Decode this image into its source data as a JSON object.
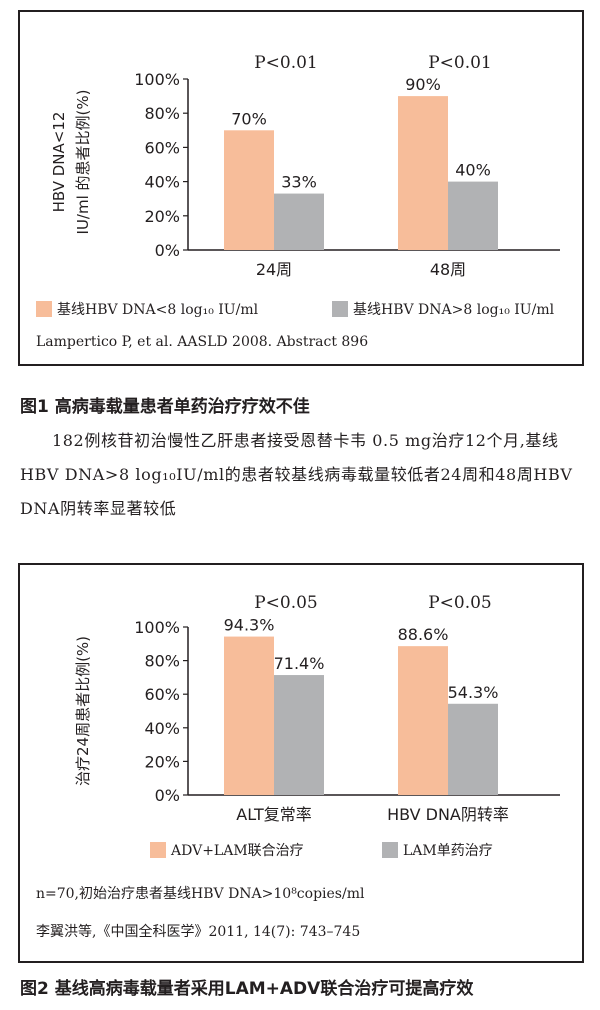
{
  "colors": {
    "series_a": "#f7bd9a",
    "series_b": "#b1b2b4",
    "axis": "#231f20"
  },
  "figure1": {
    "title": "图1 高病毒载量患者单药治疗疗效不佳",
    "caption": "182例核苷初治慢性乙肝患者接受恩替卡韦 0.5 mg治疗12个月,基线HBV DNA>8 log₁₀IU/ml的患者较基线病毒载量较低者24周和48周HBV DNA阴转率显著较低",
    "source": "Lampertico P, et al. AASLD 2008. Abstract 896"
  },
  "figure2": {
    "title": "图2 基线高病毒载量者采用LAM+ADV联合治疗可提高疗效",
    "note": "n=70,初始治疗患者基线HBV DNA>10⁸copies/ml",
    "source": "李翼洪等,《中国全科医学》2011, 14(7): 743–745"
  },
  "chart_data": [
    {
      "type": "bar",
      "title": "",
      "ylabel_lines": [
        "HBV DNA<12",
        "IU/ml 的患者比例(%)"
      ],
      "xlabel": "",
      "categories": [
        "24周",
        "48周"
      ],
      "ylim": [
        0,
        100
      ],
      "yticks": [
        "0%",
        "20%",
        "40%",
        "60%",
        "80%",
        "100%"
      ],
      "grid": false,
      "legend_position": "bottom",
      "series": [
        {
          "name": "基线HBV DNA<8 log₁₀ IU/ml",
          "values": [
            70,
            90
          ],
          "labels": [
            "70%",
            "90%"
          ],
          "color": "#f7bd9a"
        },
        {
          "name": "基线HBV DNA>8 log₁₀ IU/ml",
          "values": [
            33,
            40
          ],
          "labels": [
            "33%",
            "40%"
          ],
          "color": "#b1b2b4"
        }
      ],
      "annotations": [
        "P<0.01",
        "P<0.01"
      ]
    },
    {
      "type": "bar",
      "title": "",
      "ylabel": "治疗24周患者比例(%)",
      "xlabel": "",
      "categories": [
        "ALT复常率",
        "HBV DNA阴转率"
      ],
      "ylim": [
        0,
        100
      ],
      "yticks": [
        "0%",
        "20%",
        "40%",
        "60%",
        "80%",
        "100%"
      ],
      "grid": false,
      "legend_position": "bottom",
      "series": [
        {
          "name": "ADV+LAM联合治疗",
          "values": [
            94.3,
            88.6
          ],
          "labels": [
            "94.3%",
            "88.6%"
          ],
          "color": "#f7bd9a"
        },
        {
          "name": "LAM单药治疗",
          "values": [
            71.4,
            54.3
          ],
          "labels": [
            "71.4%",
            "54.3%"
          ],
          "color": "#b1b2b4"
        }
      ],
      "annotations": [
        "P<0.05",
        "P<0.05"
      ]
    }
  ]
}
